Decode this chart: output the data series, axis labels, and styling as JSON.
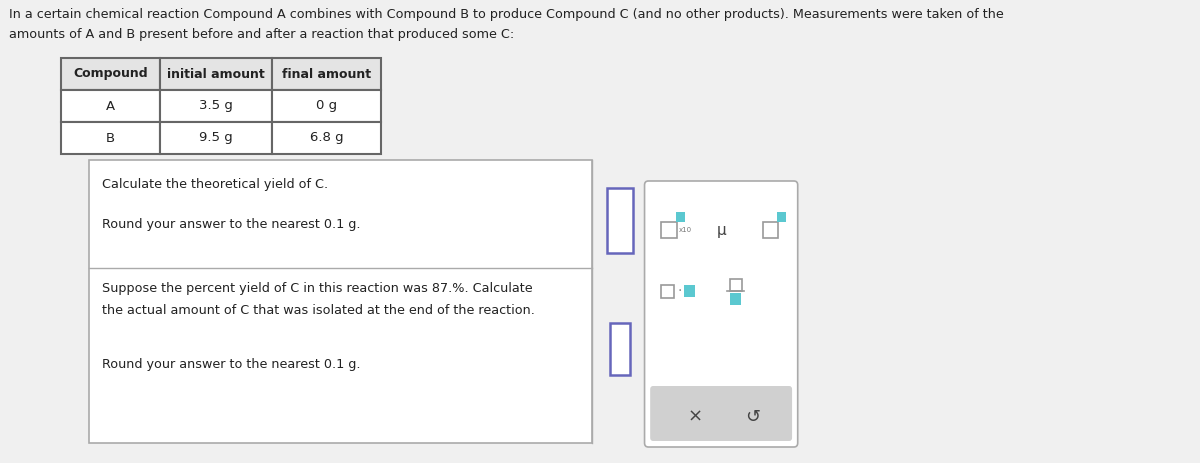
{
  "bg_color": "#f0f0f0",
  "title_text1": "In a certain chemical reaction Compound A combines with Compound B to produce Compound C (and no other products). Measurements were taken of the",
  "title_text2": "amounts of A and B present before and after a reaction that produced some C:",
  "table_headers": [
    "Compound",
    "initial amount",
    "final amount"
  ],
  "table_rows": [
    [
      "A",
      "3.5 g",
      "0 g"
    ],
    [
      "B",
      "9.5 g",
      "6.8 g"
    ]
  ],
  "question1_line1": "Calculate the theoretical yield of C.",
  "question1_line2": "Round your answer to the nearest 0.1 g.",
  "question2_line1": "Suppose the percent yield of C in this reaction was 87.%. Calculate",
  "question2_line2": "the actual amount of C that was isolated at the end of the reaction.",
  "question2_line3": "Round your answer to the nearest 0.1 g.",
  "main_box_color": "#ffffff",
  "main_box_border": "#aaaaaa",
  "input_box_color": "#ffffff",
  "input_box_border": "#6666bb",
  "toolbar_bg": "#d0d0d0",
  "symbol_color_teal": "#5bc8d0",
  "symbol_color_dark": "#444444",
  "table_border_color": "#666666",
  "table_header_bg": "#e4e4e4",
  "text_color": "#222222"
}
